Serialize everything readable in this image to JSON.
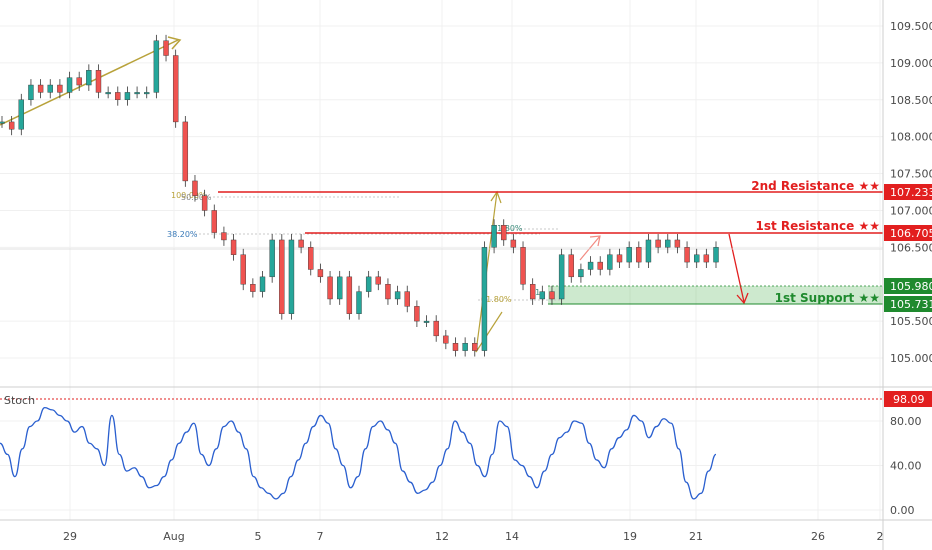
{
  "chart_data": [
    {
      "type": "candlestick",
      "symbol_pair_axis": "price",
      "y_ticks": [
        "109.500",
        "109.000",
        "108.500",
        "108.000",
        "107.500",
        "107.000",
        "106.500",
        "105.500",
        "105.000"
      ],
      "x_ticks": [
        "29",
        "Aug",
        "5",
        "7",
        "12",
        "14",
        "19",
        "21",
        "26",
        "2"
      ],
      "ylim": [
        104.7,
        109.8
      ],
      "levels": [
        {
          "label": "2nd Resistance ★★",
          "value": "107.233",
          "color": "#e21f1f"
        },
        {
          "label": "1st Resistance ★★",
          "value": "106.705",
          "color": "#e21f1f"
        },
        {
          "label": "1st Support ★★",
          "value": "105.731",
          "color": "#1f8a2e"
        }
      ],
      "support_zone_top": "105.980",
      "fib_labels": [
        "100.00%",
        "50.00%",
        "38.20%",
        "61.80%",
        "61.80%",
        "61"
      ],
      "series": [
        {
          "values": [
            108.2,
            108.1,
            108.5,
            108.7,
            108.6,
            108.7,
            108.6,
            108.8,
            108.7,
            108.9,
            108.6,
            108.6,
            108.5,
            108.6,
            108.6,
            108.6,
            109.3,
            109.1,
            108.2,
            107.4,
            107.2,
            107.0,
            106.7,
            106.6,
            106.4,
            106.0,
            105.9,
            106.1,
            106.6,
            105.6,
            106.6,
            106.5,
            106.2,
            106.1,
            105.8,
            106.1,
            105.6,
            105.9,
            106.1,
            106.0,
            105.8,
            105.9,
            105.7,
            105.5,
            105.5,
            105.3,
            105.2,
            105.1,
            105.2,
            105.1,
            106.5,
            106.8,
            106.6,
            106.5,
            106.0,
            105.8,
            105.9,
            105.8,
            106.4,
            106.1,
            106.2,
            106.3,
            106.2,
            106.4,
            106.3,
            106.5,
            106.3,
            106.6,
            106.5,
            106.6,
            106.5,
            106.3,
            106.4,
            106.3,
            106.5
          ]
        }
      ]
    },
    {
      "type": "line",
      "title": "Stoch",
      "y_ticks": [
        "80.00",
        "40.00",
        "0.00"
      ],
      "ylim": [
        -4,
        105
      ],
      "level_value": "98.09",
      "series": [
        {
          "name": "Stoch",
          "values": [
            60,
            50,
            30,
            55,
            75,
            80,
            92,
            90,
            85,
            80,
            70,
            75,
            60,
            55,
            40,
            85,
            50,
            35,
            38,
            30,
            20,
            22,
            30,
            45,
            60,
            70,
            78,
            50,
            40,
            55,
            75,
            80,
            70,
            55,
            30,
            20,
            15,
            10,
            15,
            30,
            45,
            60,
            75,
            85,
            78,
            55,
            40,
            20,
            30,
            55,
            75,
            80,
            72,
            60,
            35,
            25,
            15,
            18,
            25,
            40,
            55,
            80,
            70,
            60,
            40,
            30,
            50,
            80,
            75,
            45,
            40,
            30,
            20,
            35,
            50,
            65,
            70,
            80,
            78,
            60,
            45,
            38,
            55,
            65,
            72,
            85,
            80,
            65,
            75,
            82,
            78,
            55,
            25,
            10,
            15,
            35,
            50
          ]
        }
      ]
    }
  ]
}
